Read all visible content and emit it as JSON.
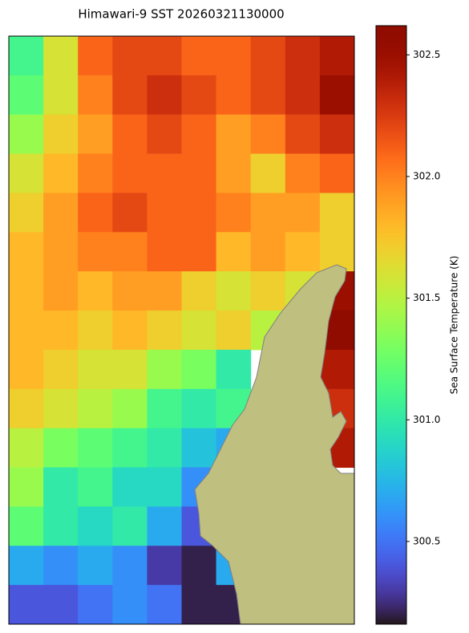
{
  "chart_data": {
    "type": "heatmap",
    "title": "Himawari-9 SST 20260321130000",
    "colorbar_label": "Sea Surface Temperature (K)",
    "colormap": "turbo",
    "clim": [
      300.16,
      302.62
    ],
    "cticks": [
      300.5,
      {
        "value": 301.0,
        "label": "301.0"
      },
      301.5,
      {
        "value": 302.0,
        "label": "302.0"
      },
      302.5
    ],
    "land_color": "#bfbf80",
    "values": [
      [
        301.1,
        301.6,
        302.1,
        302.2,
        302.2,
        302.1,
        302.1,
        302.2,
        302.3,
        302.4
      ],
      [
        301.2,
        301.6,
        302.0,
        302.2,
        302.3,
        302.2,
        302.1,
        302.2,
        302.3,
        302.5
      ],
      [
        301.4,
        301.7,
        301.9,
        302.1,
        302.2,
        302.1,
        301.9,
        302.0,
        302.2,
        302.3
      ],
      [
        301.6,
        301.8,
        302.0,
        302.1,
        302.1,
        302.1,
        301.9,
        301.7,
        302.0,
        302.1
      ],
      [
        301.7,
        301.9,
        302.1,
        302.2,
        302.1,
        302.1,
        302.0,
        301.9,
        301.9,
        301.7
      ],
      [
        301.8,
        301.9,
        302.0,
        302.0,
        302.1,
        302.1,
        301.8,
        301.9,
        301.8,
        301.7
      ],
      [
        301.8,
        301.9,
        301.8,
        301.9,
        301.9,
        301.7,
        301.6,
        301.7,
        301.6,
        302.5
      ],
      [
        301.8,
        301.8,
        301.7,
        301.8,
        301.7,
        301.6,
        301.7,
        301.5,
        null,
        302.6
      ],
      [
        301.8,
        301.7,
        301.6,
        301.6,
        301.4,
        301.3,
        301.0,
        null,
        null,
        302.4
      ],
      [
        301.7,
        301.6,
        301.5,
        301.4,
        301.1,
        301.0,
        301.1,
        null,
        null,
        302.3
      ],
      [
        301.5,
        301.3,
        301.2,
        301.1,
        301.0,
        300.8,
        300.7,
        null,
        null,
        302.4
      ],
      [
        301.4,
        301.0,
        301.1,
        300.9,
        300.9,
        300.6,
        null,
        null,
        null,
        null
      ],
      [
        301.2,
        301.0,
        300.9,
        301.0,
        300.7,
        300.4,
        null,
        null,
        null,
        null
      ],
      [
        300.7,
        300.6,
        300.7,
        300.6,
        300.3,
        300.2,
        300.7,
        null,
        null,
        null
      ],
      [
        300.4,
        300.4,
        300.5,
        300.6,
        300.5,
        300.2,
        300.2,
        null,
        null,
        null
      ]
    ]
  }
}
